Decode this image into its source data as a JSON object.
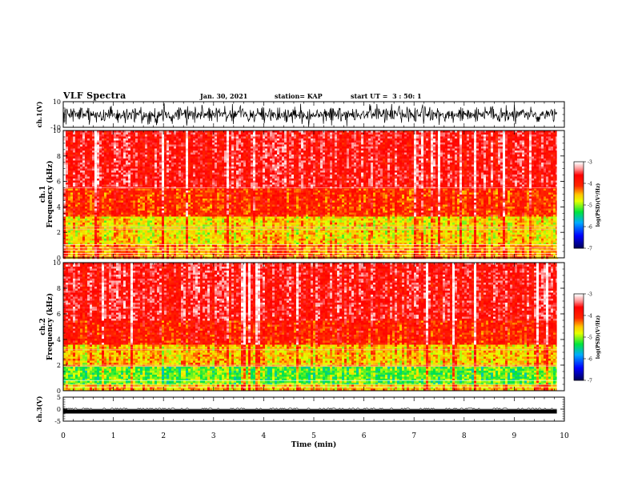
{
  "header": {
    "title": "VLF Spectra",
    "date": "Jan. 30, 2021",
    "station": "station= KAP",
    "start": "start UT =  3 : 50: 1"
  },
  "chart_data": [
    {
      "id": "ch1-waveform",
      "type": "line",
      "ylabel": "ch.1(V)",
      "ylim": [
        -10,
        10
      ],
      "yticks": [
        "10",
        "-10"
      ],
      "xlim": [
        0,
        10
      ],
      "note_series": "dense noise waveform, black"
    },
    {
      "id": "ch1-spectrogram",
      "type": "heatmap",
      "ylabel": "ch.1\nFrequency (kHz)",
      "ylabel_line1": "ch.1",
      "ylabel_line2": "Frequency (kHz)",
      "ylim": [
        0,
        10
      ],
      "yticks": [
        "0",
        "2",
        "4",
        "6",
        "8",
        "10"
      ],
      "xlim": [
        0,
        9.85
      ],
      "colorbar": {
        "label": "log(PSD)(V²/Hz)",
        "range": [
          -7,
          -3
        ],
        "ticks": [
          "-3",
          "-4",
          "-5",
          "-6",
          "-7"
        ],
        "colors": [
          "#ffffff",
          "#ff0000",
          "#ffff00",
          "#00ff00",
          "#00a0ff",
          "#0000ff",
          "#000060"
        ]
      },
      "bands": [
        {
          "from": 0,
          "to": 1,
          "level": -4.3
        },
        {
          "from": 1,
          "to": 3.2,
          "level": -4.6
        },
        {
          "from": 3.2,
          "to": 5.5,
          "level": -4.0
        },
        {
          "from": 5.5,
          "to": 10,
          "level": -3.6
        }
      ]
    },
    {
      "id": "ch2-spectrogram",
      "type": "heatmap",
      "ylabel": "ch.2\nFrequency (kHz)",
      "ylabel_line1": "ch.2",
      "ylabel_line2": "Frequency (kHz)",
      "ylim": [
        0,
        10
      ],
      "yticks": [
        "0",
        "2",
        "4",
        "6",
        "8",
        "10"
      ],
      "xlim": [
        0,
        9.85
      ],
      "colorbar": {
        "label": "log(PSD)(V²/Hz)",
        "range": [
          -7,
          -3
        ],
        "ticks": [
          "-3",
          "-4",
          "-5",
          "-6",
          "-7"
        ]
      },
      "bands": [
        {
          "from": 0,
          "to": 0.5,
          "level": -4.5
        },
        {
          "from": 0.5,
          "to": 1.8,
          "level": -5.1
        },
        {
          "from": 1.8,
          "to": 3.6,
          "level": -4.5
        },
        {
          "from": 3.6,
          "to": 5.5,
          "level": -3.9
        },
        {
          "from": 5.5,
          "to": 10,
          "level": -3.6
        }
      ]
    },
    {
      "id": "ch3-waveform",
      "type": "line",
      "ylabel": "ch.3(V)",
      "ylim": [
        -5,
        5
      ],
      "yticks": [
        "5",
        "0",
        "-5"
      ],
      "xlim": [
        0,
        10
      ],
      "note_series": "near-constant thick trace at about -1 V"
    }
  ],
  "xaxis": {
    "label": "Time (min)",
    "range": [
      0,
      10
    ],
    "ticks": [
      "0",
      "1",
      "2",
      "3",
      "4",
      "5",
      "6",
      "7",
      "8",
      "9",
      "10"
    ]
  }
}
